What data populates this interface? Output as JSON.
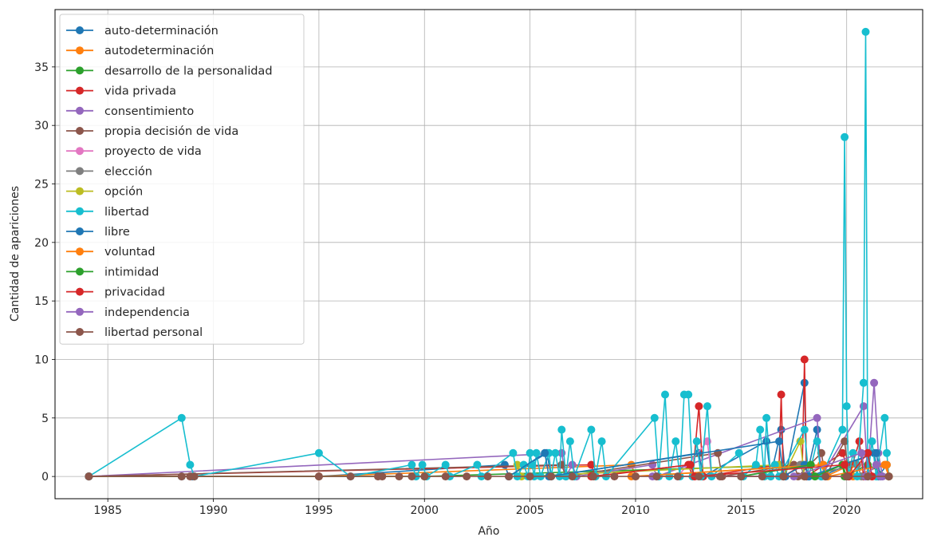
{
  "chart_data": {
    "type": "line",
    "xlabel": "Año",
    "ylabel": "Cantidad de apariciones",
    "xlim": [
      1982.5,
      2023.6
    ],
    "ylim": [
      -1.9,
      39.9
    ],
    "xticks": [
      1985,
      1990,
      1995,
      2000,
      2005,
      2010,
      2015,
      2020
    ],
    "yticks": [
      0,
      5,
      10,
      15,
      20,
      25,
      30,
      35
    ],
    "grid": true,
    "legend_position": "upper-left",
    "marker": "circle",
    "series": [
      {
        "name": "auto-determinación",
        "color": "#1f77b4",
        "points": [
          [
            1984.1,
            0
          ],
          [
            1988.5,
            0
          ],
          [
            1989.0,
            0
          ],
          [
            1995.0,
            0
          ],
          [
            2003.8,
            1
          ],
          [
            2004.0,
            0
          ],
          [
            2005.8,
            2
          ],
          [
            2006.0,
            0
          ],
          [
            2013.0,
            2
          ],
          [
            2013.2,
            0
          ],
          [
            2016.2,
            3
          ],
          [
            2016.4,
            0
          ],
          [
            2016.9,
            4
          ],
          [
            2017.1,
            0
          ],
          [
            2018.0,
            8
          ],
          [
            2018.1,
            0
          ],
          [
            2018.6,
            4
          ],
          [
            2018.8,
            0
          ],
          [
            2021.3,
            2
          ],
          [
            2021.5,
            0
          ],
          [
            2021.9,
            1
          ],
          [
            2022.0,
            0
          ]
        ]
      },
      {
        "name": "autodeterminación",
        "color": "#ff7f0e",
        "points": [
          [
            1984.1,
            0
          ],
          [
            1995.0,
            0
          ],
          [
            2009.8,
            1
          ],
          [
            2010.0,
            0
          ],
          [
            2018.8,
            1
          ],
          [
            2019.0,
            0
          ],
          [
            2020.2,
            1
          ],
          [
            2020.3,
            0
          ],
          [
            2021.8,
            1
          ],
          [
            2022.0,
            0
          ]
        ]
      },
      {
        "name": "desarrollo de la personalidad",
        "color": "#2ca02c",
        "points": [
          [
            1984.1,
            0
          ],
          [
            2000.0,
            0
          ],
          [
            2018.3,
            1
          ],
          [
            2018.5,
            0
          ],
          [
            2019.8,
            1
          ],
          [
            2019.9,
            0
          ],
          [
            2021.0,
            1
          ],
          [
            2022.0,
            0
          ]
        ]
      },
      {
        "name": "vida privada",
        "color": "#d62728",
        "points": [
          [
            1984.1,
            0
          ],
          [
            2007.9,
            1
          ],
          [
            2008.1,
            0
          ],
          [
            2012.5,
            1
          ],
          [
            2012.7,
            0
          ],
          [
            2013.0,
            6
          ],
          [
            2013.2,
            0
          ],
          [
            2016.8,
            1
          ],
          [
            2016.9,
            7
          ],
          [
            2017.0,
            0
          ],
          [
            2017.9,
            1
          ],
          [
            2018.0,
            10
          ],
          [
            2018.1,
            0
          ],
          [
            2019.8,
            2
          ],
          [
            2020.0,
            1
          ],
          [
            2020.1,
            0
          ],
          [
            2020.6,
            3
          ],
          [
            2020.8,
            0
          ],
          [
            2021.0,
            2
          ],
          [
            2021.2,
            0
          ]
        ]
      },
      {
        "name": "consentimiento",
        "color": "#9467bd",
        "points": [
          [
            1984.1,
            0
          ],
          [
            2006.5,
            2
          ],
          [
            2006.7,
            0
          ],
          [
            2007.0,
            1
          ],
          [
            2007.2,
            0
          ],
          [
            2010.8,
            1
          ],
          [
            2011.0,
            0
          ],
          [
            2018.6,
            5
          ],
          [
            2018.8,
            0
          ],
          [
            2020.8,
            6
          ],
          [
            2021.0,
            0
          ],
          [
            2021.3,
            8
          ],
          [
            2021.5,
            2
          ],
          [
            2021.7,
            0
          ]
        ]
      },
      {
        "name": "propia decisión de vida",
        "color": "#8c564b",
        "points": [
          [
            1984.1,
            0
          ],
          [
            2006.5,
            1
          ],
          [
            2006.7,
            0
          ],
          [
            2013.9,
            2
          ],
          [
            2014.1,
            0
          ],
          [
            2017.5,
            1
          ],
          [
            2017.7,
            0
          ],
          [
            2018.8,
            2
          ],
          [
            2019.0,
            0
          ],
          [
            2019.9,
            3
          ],
          [
            2020.1,
            0
          ],
          [
            2022.0,
            0
          ]
        ]
      },
      {
        "name": "proyecto de vida",
        "color": "#e377c2",
        "points": [
          [
            2012.0,
            0
          ],
          [
            2013.4,
            3
          ],
          [
            2013.6,
            0
          ],
          [
            2020.0,
            0
          ]
        ]
      },
      {
        "name": "elección",
        "color": "#7f7f7f",
        "points": [
          [
            2015.0,
            0
          ],
          [
            2017.8,
            1
          ],
          [
            2018.0,
            0
          ],
          [
            2020.5,
            1
          ],
          [
            2020.7,
            0
          ]
        ]
      },
      {
        "name": "opción",
        "color": "#bcbd22",
        "points": [
          [
            2004.4,
            1
          ],
          [
            2004.6,
            0
          ],
          [
            2016.8,
            1
          ],
          [
            2017.0,
            0
          ],
          [
            2017.8,
            3
          ],
          [
            2018.0,
            0
          ]
        ]
      },
      {
        "name": "libertad",
        "color": "#17becf",
        "points": [
          [
            1984.1,
            0
          ],
          [
            1988.5,
            5
          ],
          [
            1988.9,
            1
          ],
          [
            1989.1,
            0
          ],
          [
            1995.0,
            2
          ],
          [
            1996.5,
            0
          ],
          [
            1999.4,
            1
          ],
          [
            1999.6,
            0
          ],
          [
            1999.9,
            1
          ],
          [
            2000.1,
            0
          ],
          [
            2001.0,
            1
          ],
          [
            2001.2,
            0
          ],
          [
            2002.5,
            1
          ],
          [
            2002.7,
            0
          ],
          [
            2004.2,
            2
          ],
          [
            2004.4,
            0
          ],
          [
            2004.7,
            1
          ],
          [
            2004.9,
            0
          ],
          [
            2005.0,
            2
          ],
          [
            2005.1,
            1
          ],
          [
            2005.2,
            0
          ],
          [
            2005.3,
            2
          ],
          [
            2005.5,
            0
          ],
          [
            2005.9,
            2
          ],
          [
            2006.0,
            0
          ],
          [
            2006.2,
            2
          ],
          [
            2006.4,
            0
          ],
          [
            2006.5,
            4
          ],
          [
            2006.7,
            0
          ],
          [
            2006.9,
            3
          ],
          [
            2007.1,
            0
          ],
          [
            2007.9,
            4
          ],
          [
            2008.1,
            0
          ],
          [
            2008.4,
            3
          ],
          [
            2008.6,
            0
          ],
          [
            2010.9,
            5
          ],
          [
            2011.1,
            0
          ],
          [
            2011.4,
            7
          ],
          [
            2011.6,
            0
          ],
          [
            2011.9,
            3
          ],
          [
            2012.1,
            0
          ],
          [
            2012.3,
            7
          ],
          [
            2012.5,
            7
          ],
          [
            2012.7,
            0
          ],
          [
            2012.9,
            3
          ],
          [
            2013.1,
            0
          ],
          [
            2013.4,
            6
          ],
          [
            2013.6,
            0
          ],
          [
            2014.9,
            2
          ],
          [
            2015.1,
            0
          ],
          [
            2015.7,
            1
          ],
          [
            2015.9,
            4
          ],
          [
            2016.1,
            0
          ],
          [
            2016.2,
            5
          ],
          [
            2016.4,
            0
          ],
          [
            2016.6,
            1
          ],
          [
            2016.8,
            0
          ],
          [
            2018.0,
            4
          ],
          [
            2018.2,
            0
          ],
          [
            2018.6,
            3
          ],
          [
            2018.8,
            0
          ],
          [
            2019.8,
            4
          ],
          [
            2019.9,
            29
          ],
          [
            2020.0,
            6
          ],
          [
            2020.1,
            0
          ],
          [
            2020.3,
            2
          ],
          [
            2020.5,
            0
          ],
          [
            2020.8,
            8
          ],
          [
            2020.9,
            38
          ],
          [
            2021.0,
            0
          ],
          [
            2021.2,
            3
          ],
          [
            2021.4,
            0
          ],
          [
            2021.8,
            5
          ],
          [
            2021.9,
            2
          ],
          [
            2022.0,
            0
          ]
        ]
      },
      {
        "name": "libre",
        "color": "#1f77b4",
        "points": [
          [
            2004.0,
            0
          ],
          [
            2005.7,
            2
          ],
          [
            2005.9,
            0
          ],
          [
            2016.8,
            3
          ],
          [
            2017.0,
            0
          ],
          [
            2018.0,
            1
          ],
          [
            2018.2,
            0
          ],
          [
            2021.4,
            2
          ],
          [
            2021.6,
            0
          ]
        ]
      },
      {
        "name": "voluntad",
        "color": "#ff7f0e",
        "points": [
          [
            2009.8,
            0
          ],
          [
            2018.9,
            1
          ],
          [
            2019.1,
            0
          ],
          [
            2021.9,
            1
          ],
          [
            2022.0,
            0
          ]
        ]
      },
      {
        "name": "intimidad",
        "color": "#2ca02c",
        "points": [
          [
            2015.0,
            0
          ],
          [
            2018.3,
            1
          ],
          [
            2018.5,
            0
          ],
          [
            2019.8,
            1
          ],
          [
            2020.0,
            0
          ]
        ]
      },
      {
        "name": "privacidad",
        "color": "#d62728",
        "points": [
          [
            2007.9,
            0
          ],
          [
            2012.6,
            1
          ],
          [
            2012.8,
            0
          ],
          [
            2019.9,
            1
          ],
          [
            2020.1,
            0
          ],
          [
            2021.0,
            2
          ],
          [
            2021.2,
            0
          ]
        ]
      },
      {
        "name": "independencia",
        "color": "#9467bd",
        "points": [
          [
            2010.8,
            0
          ],
          [
            2017.5,
            0
          ],
          [
            2020.7,
            2
          ],
          [
            2020.9,
            0
          ],
          [
            2021.4,
            1
          ],
          [
            2021.6,
            0
          ]
        ]
      },
      {
        "name": "libertad personal",
        "color": "#8c564b",
        "points": [
          [
            1984.1,
            0
          ],
          [
            1988.5,
            0
          ],
          [
            1988.9,
            0
          ],
          [
            1989.1,
            0
          ],
          [
            1995.0,
            0
          ],
          [
            1996.5,
            0
          ],
          [
            1997.8,
            0
          ],
          [
            1998.0,
            0
          ],
          [
            1998.8,
            0
          ],
          [
            1999.4,
            0
          ],
          [
            2000.0,
            0
          ],
          [
            2001.0,
            0
          ],
          [
            2002.0,
            0
          ],
          [
            2003.0,
            0
          ],
          [
            2004.0,
            0
          ],
          [
            2005.0,
            0
          ],
          [
            2006.0,
            0
          ],
          [
            2007.0,
            0
          ],
          [
            2008.0,
            0
          ],
          [
            2009.0,
            0
          ],
          [
            2010.0,
            0
          ],
          [
            2011.0,
            0
          ],
          [
            2012.0,
            0
          ],
          [
            2013.0,
            0
          ],
          [
            2014.0,
            0
          ],
          [
            2015.0,
            0
          ],
          [
            2016.0,
            0
          ],
          [
            2017.0,
            0
          ],
          [
            2018.0,
            0
          ],
          [
            2019.0,
            0
          ],
          [
            2020.0,
            0
          ],
          [
            2021.0,
            0
          ],
          [
            2022.0,
            0
          ]
        ]
      }
    ]
  }
}
